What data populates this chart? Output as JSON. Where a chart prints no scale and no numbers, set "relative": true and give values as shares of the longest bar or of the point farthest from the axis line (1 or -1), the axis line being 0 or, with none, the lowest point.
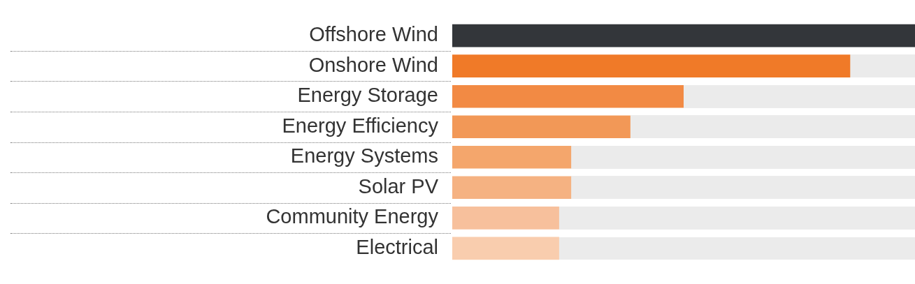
{
  "chart_data": {
    "type": "bar",
    "orientation": "horizontal",
    "relative": true,
    "categories": [
      "Offshore Wind",
      "Onshore Wind",
      "Energy Storage",
      "Energy Efficiency",
      "Energy Systems",
      "Solar PV",
      "Community Energy",
      "Electrical"
    ],
    "values": [
      1,
      0.86,
      0.5,
      0.385,
      0.257,
      0.257,
      0.231,
      0.231
    ],
    "colors": [
      "#33363a",
      "#f07a28",
      "#f28a44",
      "#f29857",
      "#f4a66c",
      "#f5b282",
      "#f7c09c",
      "#f9cdae"
    ],
    "legend": false
  }
}
